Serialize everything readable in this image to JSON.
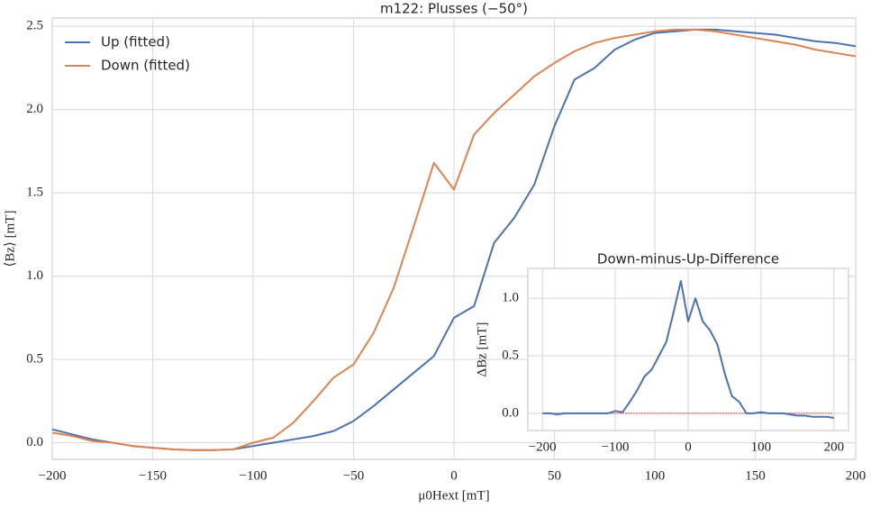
{
  "chart_data": [
    {
      "type": "line",
      "title": "m122: Plusses (−50°)",
      "xlabel": "μ0Hext [mT]",
      "ylabel": "⟨Bz⟩ [mT]",
      "x": [
        -200,
        -190,
        -180,
        -170,
        -160,
        -150,
        -140,
        -130,
        -120,
        -110,
        -100,
        -90,
        -80,
        -70,
        -60,
        -50,
        -40,
        -30,
        -20,
        -10,
        0,
        10,
        20,
        30,
        40,
        50,
        60,
        70,
        80,
        90,
        100,
        110,
        120,
        130,
        140,
        150,
        160,
        170,
        180,
        190,
        200
      ],
      "series": [
        {
          "name": "Up (fitted)",
          "color": "#4c72b0",
          "values": [
            0.08,
            0.05,
            0.02,
            0.0,
            -0.02,
            -0.03,
            -0.04,
            -0.045,
            -0.045,
            -0.04,
            -0.02,
            0.0,
            0.02,
            0.04,
            0.07,
            0.13,
            0.22,
            0.32,
            0.42,
            0.52,
            0.75,
            0.82,
            1.2,
            1.35,
            1.55,
            1.9,
            2.18,
            2.25,
            2.36,
            2.42,
            2.46,
            2.47,
            2.48,
            2.48,
            2.47,
            2.46,
            2.45,
            2.43,
            2.41,
            2.4,
            2.38
          ]
        },
        {
          "name": "Down (fitted)",
          "color": "#dd8452",
          "values": [
            0.06,
            0.04,
            0.01,
            0.0,
            -0.02,
            -0.03,
            -0.04,
            -0.045,
            -0.045,
            -0.04,
            0.0,
            0.03,
            0.12,
            0.25,
            0.39,
            0.47,
            0.66,
            0.93,
            1.3,
            1.68,
            1.52,
            1.85,
            1.98,
            2.09,
            2.2,
            2.28,
            2.35,
            2.4,
            2.43,
            2.45,
            2.47,
            2.48,
            2.48,
            2.47,
            2.45,
            2.43,
            2.41,
            2.39,
            2.36,
            2.34,
            2.32
          ]
        }
      ],
      "xlim": [
        -200,
        200
      ],
      "xticks": [
        {
          "value": -200,
          "label": "−200"
        },
        {
          "value": -150,
          "label": "−150"
        },
        {
          "value": -100,
          "label": "−100"
        },
        {
          "value": -50,
          "label": "−50"
        },
        0,
        50,
        100,
        150,
        200
      ],
      "ylim": [
        -0.1,
        2.55
      ],
      "yticks": [
        {
          "value": 0,
          "label": "0.0"
        },
        {
          "value": 0.5,
          "label": "0.5"
        },
        {
          "value": 1,
          "label": "1.0"
        },
        {
          "value": 1.5,
          "label": "1.5"
        },
        {
          "value": 2,
          "label": "2.0"
        },
        {
          "value": 2.5,
          "label": "2.5"
        }
      ],
      "grid": true,
      "legend": "upper left"
    },
    {
      "type": "line",
      "title": "Down-minus-Up-Difference",
      "ylabel": "ΔBz [mT]",
      "x": [
        -200,
        -190,
        -180,
        -170,
        -160,
        -150,
        -140,
        -130,
        -120,
        -110,
        -100,
        -90,
        -80,
        -70,
        -60,
        -50,
        -40,
        -30,
        -20,
        -10,
        0,
        10,
        20,
        30,
        40,
        50,
        60,
        70,
        80,
        90,
        100,
        110,
        120,
        130,
        140,
        150,
        160,
        170,
        180,
        190,
        200
      ],
      "series": [
        {
          "color": "#4c72b0",
          "values": [
            0.0,
            0.0,
            -0.01,
            0.0,
            0.0,
            0.0,
            0.0,
            0.0,
            0.0,
            0.0,
            0.02,
            0.01,
            0.1,
            0.2,
            0.32,
            0.38,
            0.5,
            0.62,
            0.88,
            1.15,
            0.8,
            1.0,
            0.8,
            0.72,
            0.6,
            0.35,
            0.15,
            0.1,
            0.0,
            0.0,
            0.01,
            0.0,
            0.0,
            0.0,
            -0.01,
            -0.02,
            -0.02,
            -0.03,
            -0.03,
            -0.03,
            -0.04
          ]
        }
      ],
      "hline": {
        "value": 0,
        "color": "#c44e52"
      },
      "xlim": [
        -220,
        220
      ],
      "xticks": [
        {
          "value": -200,
          "label": "−200"
        },
        {
          "value": -100,
          "label": "−100"
        },
        0,
        100,
        200
      ],
      "ylim": [
        -0.15,
        1.26
      ],
      "yticks": [
        {
          "value": 0,
          "label": "0.0"
        },
        {
          "value": 0.5,
          "label": "0.5"
        },
        {
          "value": 1,
          "label": "1.0"
        }
      ],
      "grid": true
    }
  ]
}
